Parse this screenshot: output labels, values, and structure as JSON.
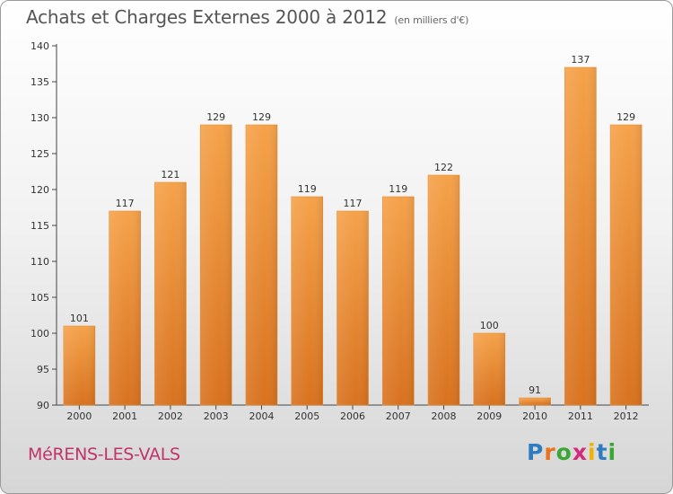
{
  "header": {
    "title": "Achats et Charges Externes 2000 à 2012",
    "subtitle": "(en milliers d'€)"
  },
  "footer": {
    "city": "MéRENS-LES-VALS",
    "logo_letters": [
      "P",
      "r",
      "o",
      "x",
      "i",
      "t",
      "i"
    ],
    "logo_colors": [
      "#2f7dc0",
      "#e8731a",
      "#3aa635",
      "#d42a7a",
      "#f2b300",
      "#2f7dc0",
      "#3aa635"
    ]
  },
  "chart_data": {
    "type": "bar",
    "title": "Achats et Charges Externes 2000 à 2012",
    "subtitle": "(en milliers d'€)",
    "categories": [
      "2000",
      "2001",
      "2002",
      "2003",
      "2004",
      "2005",
      "2006",
      "2007",
      "2008",
      "2009",
      "2010",
      "2011",
      "2012"
    ],
    "values": [
      101,
      117,
      121,
      129,
      129,
      119,
      117,
      119,
      122,
      100,
      91,
      137,
      129
    ],
    "ylim": [
      90,
      140
    ],
    "yticks": [
      90,
      95,
      100,
      105,
      110,
      115,
      120,
      125,
      130,
      135,
      140
    ],
    "grid": false,
    "bar_color": "#f19a3e",
    "bar_color_dark": "#d4701f"
  }
}
